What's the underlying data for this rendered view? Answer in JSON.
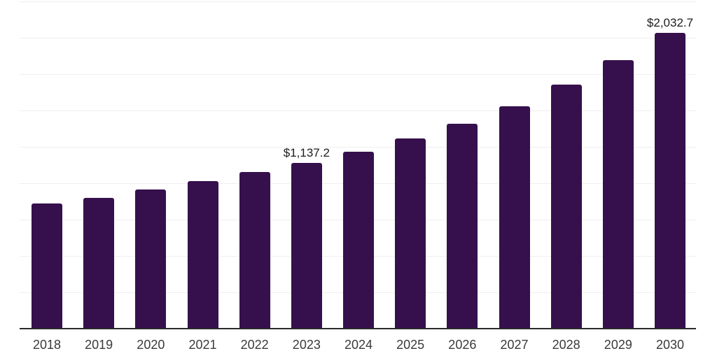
{
  "chart_data": {
    "type": "bar",
    "title": "",
    "xlabel": "",
    "ylabel": "",
    "categories": [
      "2018",
      "2019",
      "2020",
      "2021",
      "2022",
      "2023",
      "2024",
      "2025",
      "2026",
      "2027",
      "2028",
      "2029",
      "2030"
    ],
    "values": [
      860,
      899,
      957,
      1014,
      1075,
      1137.2,
      1216,
      1308,
      1409,
      1529,
      1678,
      1846,
      2032.7
    ],
    "value_prefix": "$",
    "data_labels": [
      {
        "category": "2023",
        "index": 5,
        "text": "$1,137.2"
      },
      {
        "category": "2030",
        "index": 12,
        "text": "$2,032.7"
      }
    ],
    "ylim": [
      0,
      2250
    ],
    "gridline_interval": 250,
    "grid": "horizontal-only",
    "y_tick_labels_visible": false,
    "legend_position": "none",
    "colors": {
      "bar": "#36104c",
      "gridline": "#efefef",
      "axis_line": "#2b2b2b",
      "tick_label": "#3a3a3a",
      "data_label": "#1c1c1c",
      "background": "#ffffff"
    }
  }
}
